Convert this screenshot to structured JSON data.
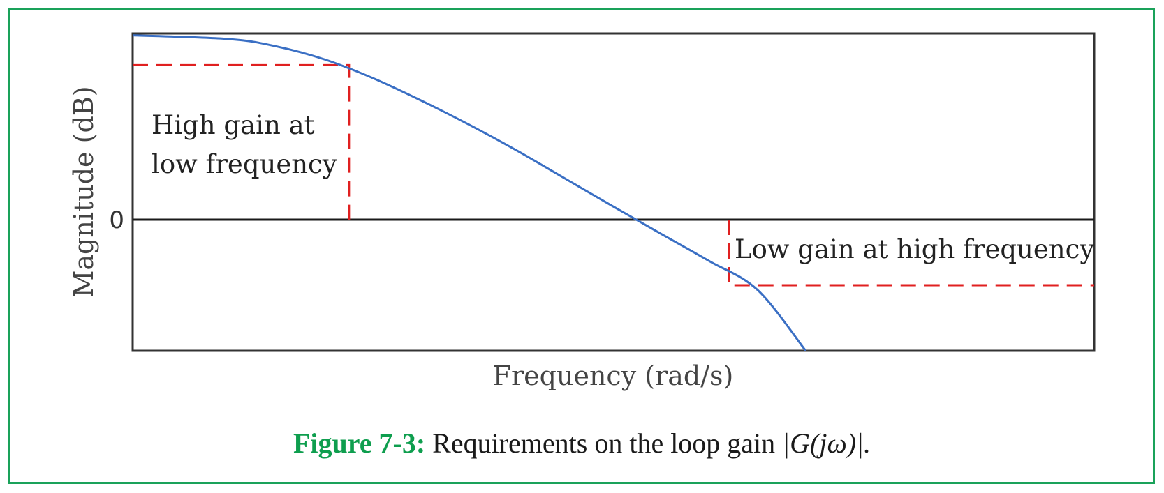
{
  "caption": {
    "label": "Figure 7-3:",
    "text": "Requirements on the loop gain",
    "math": "|G(jω)|."
  },
  "chart_data": {
    "type": "line",
    "title": "",
    "xlabel": "Frequency (rad/s)",
    "ylabel": "Magnitude (dB)",
    "y_ticks": [
      "0"
    ],
    "xlim": [
      0,
      1
    ],
    "ylim": [
      -1,
      1
    ],
    "series": [
      {
        "color": "#3a6fc4",
        "x": [
          0.0,
          0.1,
          0.15,
          0.2,
          0.25,
          0.3,
          0.35,
          0.4,
          0.45,
          0.5,
          0.55,
          0.6,
          0.65,
          0.7
        ],
        "y": [
          0.99,
          0.97,
          0.93,
          0.86,
          0.76,
          0.64,
          0.51,
          0.37,
          0.22,
          0.07,
          -0.09,
          -0.26,
          -0.44,
          -0.82
        ]
      }
    ],
    "constraints": [
      {
        "name": "High gain at low frequency",
        "color": "#e02020",
        "style": "dashed",
        "x": [
          0.0,
          0.225,
          0.225
        ],
        "y": [
          0.83,
          0.83,
          0.0
        ],
        "label_lines": [
          "High gain at",
          "low frequency"
        ]
      },
      {
        "name": "Low gain at high frequency",
        "color": "#e02020",
        "style": "dashed",
        "x": [
          0.62,
          0.62,
          1.0
        ],
        "y": [
          0.0,
          -0.41,
          -0.41
        ],
        "label_lines": [
          "Low gain at high frequency"
        ]
      }
    ],
    "zero_line": {
      "y": 0,
      "color": "#1a1a1a"
    },
    "grid": false,
    "legend": "none"
  }
}
